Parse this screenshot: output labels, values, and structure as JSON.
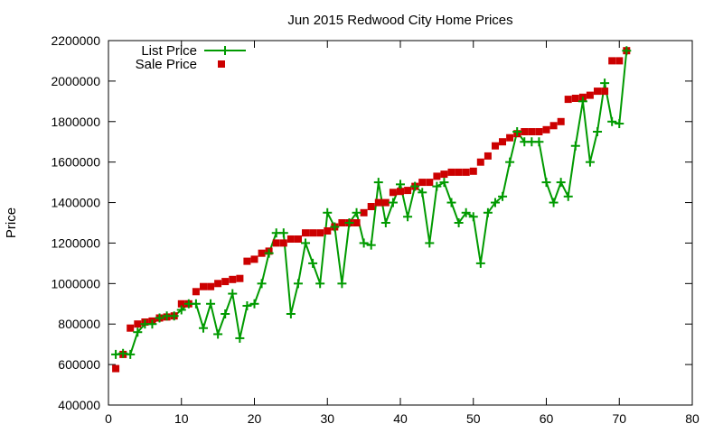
{
  "chart_data": {
    "type": "line",
    "title": "Jun 2015 Redwood City Home Prices",
    "xlabel": "",
    "ylabel": "Price",
    "xlim": [
      0,
      80
    ],
    "ylim": [
      400000,
      2200000
    ],
    "xticks": [
      "0",
      "10",
      "20",
      "30",
      "40",
      "50",
      "60",
      "70",
      "80"
    ],
    "yticks": [
      "400000",
      "600000",
      "800000",
      "1000000",
      "1200000",
      "1400000",
      "1600000",
      "1800000",
      "2000000",
      "2200000"
    ],
    "grid": false,
    "legend_position": "top-left",
    "colors": {
      "list_price": "#009a00",
      "sale_price": "#cc0000"
    },
    "series": [
      {
        "name": "List Price",
        "style": "line-with-plus-markers",
        "x": [
          1,
          2,
          3,
          4,
          5,
          6,
          7,
          8,
          9,
          10,
          11,
          12,
          13,
          14,
          15,
          16,
          17,
          18,
          19,
          20,
          21,
          22,
          23,
          24,
          25,
          26,
          27,
          28,
          29,
          30,
          31,
          32,
          33,
          34,
          35,
          36,
          37,
          38,
          39,
          40,
          41,
          42,
          43,
          44,
          45,
          46,
          47,
          48,
          49,
          50,
          51,
          52,
          53,
          54,
          55,
          56,
          57,
          58,
          59,
          60,
          61,
          62,
          63,
          64,
          65,
          66,
          67,
          68,
          69,
          70,
          71
        ],
        "y": [
          650000,
          655000,
          650000,
          760000,
          800000,
          800000,
          830000,
          840000,
          840000,
          870000,
          900000,
          900000,
          780000,
          900000,
          750000,
          850000,
          950000,
          730000,
          890000,
          900000,
          1000000,
          1150000,
          1250000,
          1250000,
          850000,
          1000000,
          1200000,
          1100000,
          1000000,
          1350000,
          1280000,
          1000000,
          1300000,
          1350000,
          1200000,
          1190000,
          1500000,
          1300000,
          1400000,
          1490000,
          1330000,
          1480000,
          1450000,
          1200000,
          1480000,
          1500000,
          1400000,
          1300000,
          1350000,
          1330000,
          1100000,
          1350000,
          1400000,
          1430000,
          1600000,
          1750000,
          1700000,
          1700000,
          1700000,
          1500000,
          1400000,
          1500000,
          1430000,
          1680000,
          1900000,
          1600000,
          1750000,
          1990000,
          1800000,
          1790000,
          2150000
        ]
      },
      {
        "name": "Sale Price",
        "style": "square-markers",
        "x": [
          1,
          2,
          3,
          4,
          5,
          6,
          7,
          8,
          9,
          10,
          11,
          12,
          13,
          14,
          15,
          16,
          17,
          18,
          19,
          20,
          21,
          22,
          23,
          24,
          25,
          26,
          27,
          28,
          29,
          30,
          31,
          32,
          33,
          34,
          35,
          36,
          37,
          38,
          39,
          40,
          41,
          42,
          43,
          44,
          45,
          46,
          47,
          48,
          49,
          50,
          51,
          52,
          53,
          54,
          55,
          56,
          57,
          58,
          59,
          60,
          61,
          62,
          63,
          64,
          65,
          66,
          67,
          68,
          69,
          70,
          71
        ],
        "y": [
          580000,
          650000,
          780000,
          800000,
          810000,
          815000,
          830000,
          835000,
          840000,
          900000,
          900000,
          960000,
          985000,
          985000,
          1000000,
          1010000,
          1020000,
          1025000,
          1110000,
          1120000,
          1150000,
          1160000,
          1200000,
          1200000,
          1220000,
          1220000,
          1250000,
          1250000,
          1250000,
          1260000,
          1280000,
          1300000,
          1300000,
          1300000,
          1350000,
          1380000,
          1400000,
          1400000,
          1450000,
          1455000,
          1460000,
          1480000,
          1500000,
          1500000,
          1530000,
          1540000,
          1550000,
          1550000,
          1550000,
          1555000,
          1600000,
          1630000,
          1680000,
          1700000,
          1720000,
          1740000,
          1750000,
          1750000,
          1750000,
          1760000,
          1780000,
          1800000,
          1910000,
          1915000,
          1920000,
          1930000,
          1950000,
          1950000,
          2100000,
          2100000,
          2150000
        ]
      }
    ]
  }
}
